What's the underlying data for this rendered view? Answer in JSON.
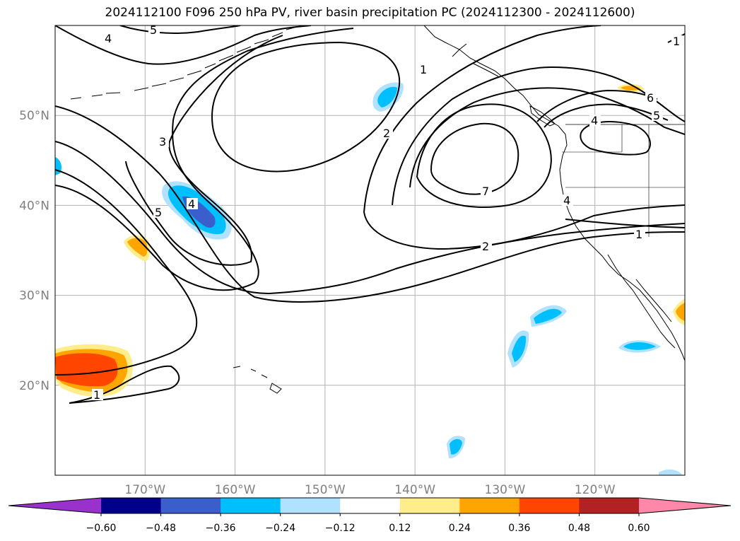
{
  "title": "2024112100 F096 250 hPa PV, river basin precipitation PC (2024112300 - 2024112600)",
  "map": {
    "lon_range": [
      -180,
      -110
    ],
    "lat_range": [
      10,
      60
    ],
    "lon_ticks": [
      {
        "lon": -170,
        "label": "170°W"
      },
      {
        "lon": -160,
        "label": "160°W"
      },
      {
        "lon": -150,
        "label": "150°W"
      },
      {
        "lon": -140,
        "label": "140°W"
      },
      {
        "lon": -130,
        "label": "130°W"
      },
      {
        "lon": -120,
        "label": "120°W"
      }
    ],
    "lat_ticks": [
      {
        "lat": 50,
        "label": "50°N"
      },
      {
        "lat": 40,
        "label": "40°N"
      },
      {
        "lat": 30,
        "label": "30°N"
      },
      {
        "lat": 20,
        "label": "20°N"
      }
    ],
    "grid": true,
    "contour_labels": [
      "5",
      "4",
      "3",
      "5",
      "4",
      "1",
      "2",
      "7",
      "2",
      "4",
      "1",
      "6",
      "5",
      "4",
      "1",
      "1"
    ]
  },
  "colorbar": {
    "ticks": [
      "−0.60",
      "−0.48",
      "−0.36",
      "−0.24",
      "−0.12",
      "0.12",
      "0.24",
      "0.36",
      "0.48",
      "0.60"
    ],
    "colors": [
      "#9932cc",
      "#00008b",
      "#3a5fcd",
      "#00bfff",
      "#b0e2ff",
      "#ffffff",
      "#ffec8b",
      "#ffa500",
      "#ff4500",
      "#b22222",
      "#ff88aa"
    ],
    "extend": "both"
  }
}
